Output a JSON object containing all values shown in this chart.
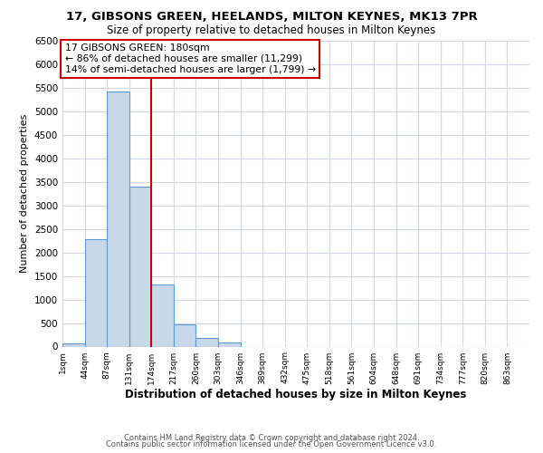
{
  "title": "17, GIBSONS GREEN, HEELANDS, MILTON KEYNES, MK13 7PR",
  "subtitle": "Size of property relative to detached houses in Milton Keynes",
  "xlabel": "Distribution of detached houses by size in Milton Keynes",
  "ylabel": "Number of detached properties",
  "bin_labels": [
    "1sqm",
    "44sqm",
    "87sqm",
    "131sqm",
    "174sqm",
    "217sqm",
    "260sqm",
    "303sqm",
    "346sqm",
    "389sqm",
    "432sqm",
    "475sqm",
    "518sqm",
    "561sqm",
    "604sqm",
    "648sqm",
    "691sqm",
    "734sqm",
    "777sqm",
    "820sqm",
    "863sqm"
  ],
  "bar_values": [
    60,
    2280,
    5430,
    3390,
    1320,
    480,
    185,
    80,
    0,
    0,
    0,
    0,
    0,
    0,
    0,
    0,
    0,
    0,
    0,
    0
  ],
  "bar_color": "#c8d8e8",
  "bar_edge_color": "#5b9bd5",
  "vline_x": 4,
  "vline_color": "#cc0000",
  "annotation_title": "17 GIBSONS GREEN: 180sqm",
  "annotation_line1": "← 86% of detached houses are smaller (11,299)",
  "annotation_line2": "14% of semi-detached houses are larger (1,799) →",
  "annotation_box_color": "#ffffff",
  "annotation_box_edge": "#cc0000",
  "ylim": [
    0,
    6500
  ],
  "yticks": [
    0,
    500,
    1000,
    1500,
    2000,
    2500,
    3000,
    3500,
    4000,
    4500,
    5000,
    5500,
    6000,
    6500
  ],
  "footer1": "Contains HM Land Registry data © Crown copyright and database right 2024.",
  "footer2": "Contains public sector information licensed under the Open Government Licence v3.0.",
  "background_color": "#ffffff",
  "grid_color": "#d0d8e8"
}
